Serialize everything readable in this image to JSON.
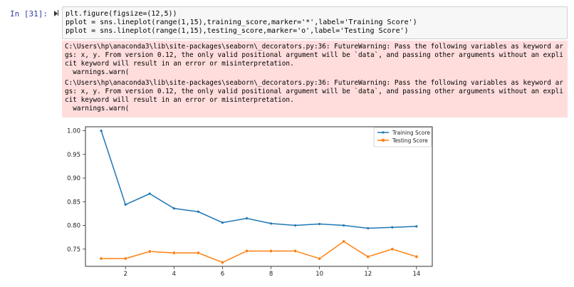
{
  "cell": {
    "prompt": "In [31]:",
    "code_lines": [
      "plt.figure(figsize=(12,5))",
      "pplot = sns.lineplot(range(1,15),training_score,marker='*',label='Training Score')",
      "pplot = sns.lineplot(range(1,15),testing_score,marker='o',label='Testing Score')"
    ]
  },
  "stderr": {
    "lines": [
      "C:\\Users\\hp\\anaconda3\\lib\\site-packages\\seaborn\\_decorators.py:36: FutureWarning: Pass the following variables as keyword ar",
      "gs: x, y. From version 0.12, the only valid positional argument will be `data`, and passing other arguments without an expli",
      "cit keyword will result in an error or misinterpretation.",
      "  warnings.warn(",
      "C:\\Users\\hp\\anaconda3\\lib\\site-packages\\seaborn\\_decorators.py:36: FutureWarning: Pass the following variables as keyword ar",
      "gs: x, y. From version 0.12, the only valid positional argument will be `data`, and passing other arguments without an expli",
      "cit keyword will result in an error or misinterpretation.",
      "  warnings.warn("
    ]
  },
  "chart_data": {
    "type": "line",
    "x": [
      1,
      2,
      3,
      4,
      5,
      6,
      7,
      8,
      9,
      10,
      11,
      12,
      13,
      14
    ],
    "series": [
      {
        "name": "Training Score",
        "color": "#1f77b4",
        "marker": "*",
        "values": [
          1.0,
          0.844,
          0.867,
          0.836,
          0.829,
          0.806,
          0.815,
          0.804,
          0.8,
          0.803,
          0.8,
          0.794,
          0.796,
          0.798
        ]
      },
      {
        "name": "Testing Score",
        "color": "#ff7f0e",
        "marker": "o",
        "values": [
          0.73,
          0.73,
          0.745,
          0.742,
          0.742,
          0.722,
          0.746,
          0.746,
          0.746,
          0.73,
          0.766,
          0.734,
          0.75,
          0.734
        ]
      }
    ],
    "xticks": [
      2,
      4,
      6,
      8,
      10,
      12,
      14
    ],
    "yticks": [
      0.75,
      0.8,
      0.85,
      0.9,
      0.95,
      1.0
    ],
    "ytick_labels": [
      "0.75",
      "0.80",
      "0.85",
      "0.90",
      "0.95",
      "1.00"
    ],
    "xlim": [
      0.35,
      14.65
    ],
    "ylim": [
      0.7136,
      1.0084
    ],
    "legend": "top-right",
    "grid": false
  }
}
